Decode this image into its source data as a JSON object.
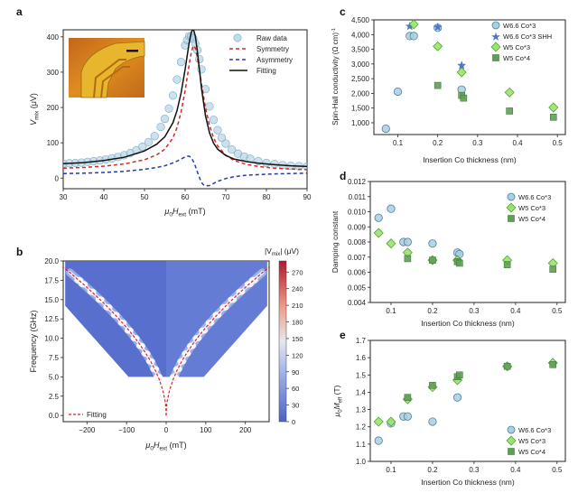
{
  "panels": {
    "a": {
      "letter": "a",
      "ylabel": "V",
      "ylabel_sub": "mix",
      "ylabel_unit": " (μV)",
      "xlabel": "μ",
      "xlabel_sub0": "0",
      "xlabel_mid": "H",
      "xlabel_sub1": "ext",
      "xlabel_unit": " (mT)",
      "legend": [
        "Raw data",
        "Symmetry",
        "Asymmetry",
        "Fitting"
      ]
    },
    "b": {
      "letter": "b",
      "ylabel": "Frequency (GHz)",
      "xlabel": "μ",
      "xlabel_sub0": "0",
      "xlabel_mid": "H",
      "xlabel_sub1": "ext",
      "xlabel_unit": " (mT)",
      "legend": [
        "Fitting"
      ],
      "colorbar_title": "|V",
      "colorbar_title_sub": "mix",
      "colorbar_title_unit": "| (μV)"
    },
    "c": {
      "letter": "c",
      "ylabel": "Spin-Hall conductivity (Ω cm)",
      "ylabel_sup": "-1",
      "xlabel": "Insertion Co thickness (nm)",
      "legend": [
        "W6.6 Co*3",
        "W6.6 Co*3 SHH",
        "W5 Co*3",
        "W5 Co*4"
      ]
    },
    "d": {
      "letter": "d",
      "ylabel": "Damping constant",
      "xlabel": "Insertion Co thickness (nm)",
      "legend": [
        "W6.6 Co*3",
        "W5 Co*3",
        "W5 Co*4"
      ]
    },
    "e": {
      "letter": "e",
      "ylabel": "μ",
      "ylabel_sub0": "0",
      "ylabel_mid": "M",
      "ylabel_sub1": "eff",
      "ylabel_unit": " (T)",
      "xlabel": "Insertion Co thickness (nm)",
      "legend": [
        "W6.6 Co*3",
        "W5 Co*3",
        "W5 Co*4"
      ]
    }
  },
  "colors": {
    "circle_fill": "#a8cfe3",
    "circle_edge": "#4f7f99",
    "star": "#4a78c8",
    "diamond_fill": "#9be36d",
    "diamond_edge": "#3e9a2a",
    "square_fill": "#5f9e57",
    "square_edge": "#3f7a38",
    "sym": "#d42626",
    "asym": "#1f3bb3",
    "fit": "#111111",
    "map_low": "#4b63c9",
    "map_mid": "#e6e8ee",
    "map_high": "#b2182b"
  },
  "chart_data": [
    {
      "panel": "a",
      "type": "line",
      "xlim": [
        30,
        90
      ],
      "ylim": [
        -30,
        420
      ],
      "xticks": [
        30,
        40,
        50,
        60,
        70,
        80,
        90
      ],
      "yticks": [
        0,
        100,
        200,
        300,
        400
      ],
      "resonance": {
        "H0_mT": 62,
        "linewidth_mT": 3.4
      },
      "series": [
        {
          "name": "Raw data",
          "style": "markers",
          "x": [
            30,
            31.5,
            33,
            34.5,
            36,
            37.5,
            39,
            40.5,
            42,
            43.5,
            45,
            46.5,
            48,
            49.5,
            51,
            52.5,
            54,
            55,
            56,
            57,
            58,
            59,
            60,
            60.5,
            61,
            61.5,
            62,
            62.5,
            63,
            63.5,
            64,
            65,
            66,
            67,
            68,
            69,
            70,
            71.5,
            73,
            74.5,
            76,
            78,
            80,
            82,
            84,
            86,
            88,
            90
          ],
          "y": [
            41,
            42,
            43,
            44,
            46,
            48,
            50,
            53,
            56,
            60,
            65,
            71,
            79,
            89,
            102,
            119,
            145,
            168,
            197,
            234,
            279,
            329,
            376,
            391,
            402,
            402,
            395,
            381,
            362,
            337,
            308,
            252,
            203,
            165,
            136,
            114,
            98,
            81,
            69,
            61,
            55,
            48,
            43,
            40,
            37,
            35,
            34,
            33
          ]
        },
        {
          "name": "Symmetry",
          "style": "dashed",
          "x": [
            30,
            35,
            40,
            45,
            50,
            53,
            55,
            57,
            58,
            59,
            60,
            60.5,
            61,
            61.5,
            62,
            62.5,
            63,
            63.5,
            64,
            65,
            66,
            67,
            68,
            70,
            72,
            75,
            78,
            82,
            86,
            90
          ],
          "y": [
            28,
            30,
            34,
            40,
            52,
            66,
            82,
            114,
            143,
            187,
            248,
            285,
            322,
            355,
            375,
            368,
            342,
            306,
            268,
            199,
            149,
            114,
            91,
            65,
            50,
            39,
            33,
            28,
            26,
            24
          ]
        },
        {
          "name": "Asymmetry",
          "style": "dashed",
          "x": [
            30,
            35,
            40,
            45,
            50,
            53,
            55,
            57,
            58,
            59,
            60,
            60.5,
            61,
            61.5,
            62,
            62.5,
            63,
            63.5,
            64,
            64.5,
            65,
            66,
            67,
            68,
            70,
            72,
            75,
            78,
            82,
            86,
            90
          ],
          "y": [
            13,
            14,
            16,
            19,
            25,
            30,
            35,
            43,
            48,
            54,
            60,
            62,
            62,
            58,
            48,
            34,
            18,
            2,
            -12,
            -19,
            -22,
            -21,
            -15,
            -9,
            -1,
            4,
            8,
            10,
            12,
            13,
            14
          ]
        },
        {
          "name": "Fitting",
          "style": "solid",
          "x": [
            30,
            35,
            40,
            45,
            50,
            53,
            55,
            57,
            58,
            59,
            60,
            60.5,
            61,
            61.5,
            62,
            62.5,
            63,
            63.5,
            64,
            65,
            66,
            67,
            68,
            70,
            72,
            75,
            78,
            82,
            86,
            90
          ],
          "y": [
            41,
            44,
            50,
            59,
            77,
            96,
            117,
            157,
            191,
            241,
            308,
            347,
            384,
            413,
            423,
            402,
            360,
            308,
            256,
            177,
            128,
            99,
            82,
            64,
            54,
            47,
            42,
            38,
            35,
            33
          ]
        }
      ]
    },
    {
      "panel": "b",
      "type": "heatmap",
      "xlim": [
        -260,
        260
      ],
      "ylim": [
        -0.8,
        20
      ],
      "xticks": [
        -200,
        -100,
        0,
        100,
        200
      ],
      "yticks": [
        0,
        2.5,
        5,
        7.5,
        10,
        12.5,
        15,
        17.5,
        20
      ],
      "colorbar": {
        "min": 0,
        "max": 290,
        "ticks": [
          0,
          30,
          60,
          90,
          120,
          150,
          180,
          210,
          240,
          270
        ]
      },
      "measured_frequencies_GHz": [
        5,
        6,
        7,
        8,
        9,
        10,
        11,
        12,
        13,
        14,
        15,
        16,
        17,
        17.5
      ],
      "kittel_fit": {
        "name": "Fitting",
        "Meff_T": 1.55,
        "gyro_GHz_per_T": 28
      }
    },
    {
      "panel": "c",
      "type": "scatter",
      "xlim": [
        0.04,
        0.52
      ],
      "ylim": [
        600,
        4500
      ],
      "xticks": [
        0.1,
        0.2,
        0.3,
        0.4,
        0.5
      ],
      "yticks": [
        1000,
        1500,
        2000,
        2500,
        3000,
        3500,
        4000,
        4500
      ],
      "series": [
        {
          "name": "W6.6 Co*3",
          "marker": "circle",
          "x": [
            0.07,
            0.1,
            0.13,
            0.14,
            0.2,
            0.26
          ],
          "y": [
            800,
            2060,
            3950,
            3950,
            4230,
            2130
          ]
        },
        {
          "name": "W6.6 Co*3 SHH",
          "marker": "star",
          "x": [
            0.13,
            0.2,
            0.26
          ],
          "y": [
            4280,
            4250,
            2950
          ]
        },
        {
          "name": "W5 Co*3",
          "marker": "diamond",
          "x": [
            0.14,
            0.2,
            0.26,
            0.38,
            0.49
          ],
          "y": [
            4350,
            3600,
            2720,
            2030,
            1520
          ]
        },
        {
          "name": "W5 Co*4",
          "marker": "square",
          "x": [
            0.2,
            0.26,
            0.265,
            0.38,
            0.49
          ],
          "y": [
            2270,
            1930,
            1840,
            1400,
            1190
          ]
        }
      ]
    },
    {
      "panel": "d",
      "type": "scatter",
      "xlim": [
        0.05,
        0.52
      ],
      "ylim": [
        0.004,
        0.012
      ],
      "xticks": [
        0.1,
        0.2,
        0.3,
        0.4,
        0.5
      ],
      "yticks": [
        0.004,
        0.005,
        0.006,
        0.007,
        0.008,
        0.009,
        0.01,
        0.011,
        0.012
      ],
      "series": [
        {
          "name": "W6.6 Co*3",
          "marker": "circle",
          "x": [
            0.07,
            0.1,
            0.13,
            0.14,
            0.2,
            0.26,
            0.265
          ],
          "y": [
            0.0096,
            0.0102,
            0.008,
            0.008,
            0.0079,
            0.0073,
            0.0072
          ]
        },
        {
          "name": "W5 Co*3",
          "marker": "diamond",
          "x": [
            0.07,
            0.1,
            0.14,
            0.2,
            0.26,
            0.38,
            0.49
          ],
          "y": [
            0.0086,
            0.0079,
            0.0073,
            0.0068,
            0.0068,
            0.0068,
            0.0066
          ]
        },
        {
          "name": "W5 Co*4",
          "marker": "square",
          "x": [
            0.14,
            0.2,
            0.26,
            0.265,
            0.38,
            0.49
          ],
          "y": [
            0.0069,
            0.0068,
            0.0067,
            0.0066,
            0.0065,
            0.0062
          ]
        }
      ]
    },
    {
      "panel": "e",
      "type": "scatter",
      "xlim": [
        0.05,
        0.52
      ],
      "ylim": [
        1.0,
        1.7
      ],
      "xticks": [
        0.1,
        0.2,
        0.3,
        0.4,
        0.5
      ],
      "yticks": [
        1.0,
        1.1,
        1.2,
        1.3,
        1.4,
        1.5,
        1.6,
        1.7
      ],
      "series": [
        {
          "name": "W6.6 Co*3",
          "marker": "circle",
          "x": [
            0.07,
            0.1,
            0.13,
            0.14,
            0.2,
            0.26
          ],
          "y": [
            1.12,
            1.22,
            1.26,
            1.26,
            1.23,
            1.37
          ]
        },
        {
          "name": "W5 Co*3",
          "marker": "diamond",
          "x": [
            0.07,
            0.1,
            0.14,
            0.2,
            0.26,
            0.38,
            0.49
          ],
          "y": [
            1.23,
            1.23,
            1.36,
            1.43,
            1.47,
            1.55,
            1.57
          ]
        },
        {
          "name": "W5 Co*4",
          "marker": "square",
          "x": [
            0.14,
            0.2,
            0.26,
            0.265,
            0.38,
            0.49
          ],
          "y": [
            1.37,
            1.44,
            1.49,
            1.5,
            1.55,
            1.56
          ]
        }
      ]
    }
  ]
}
